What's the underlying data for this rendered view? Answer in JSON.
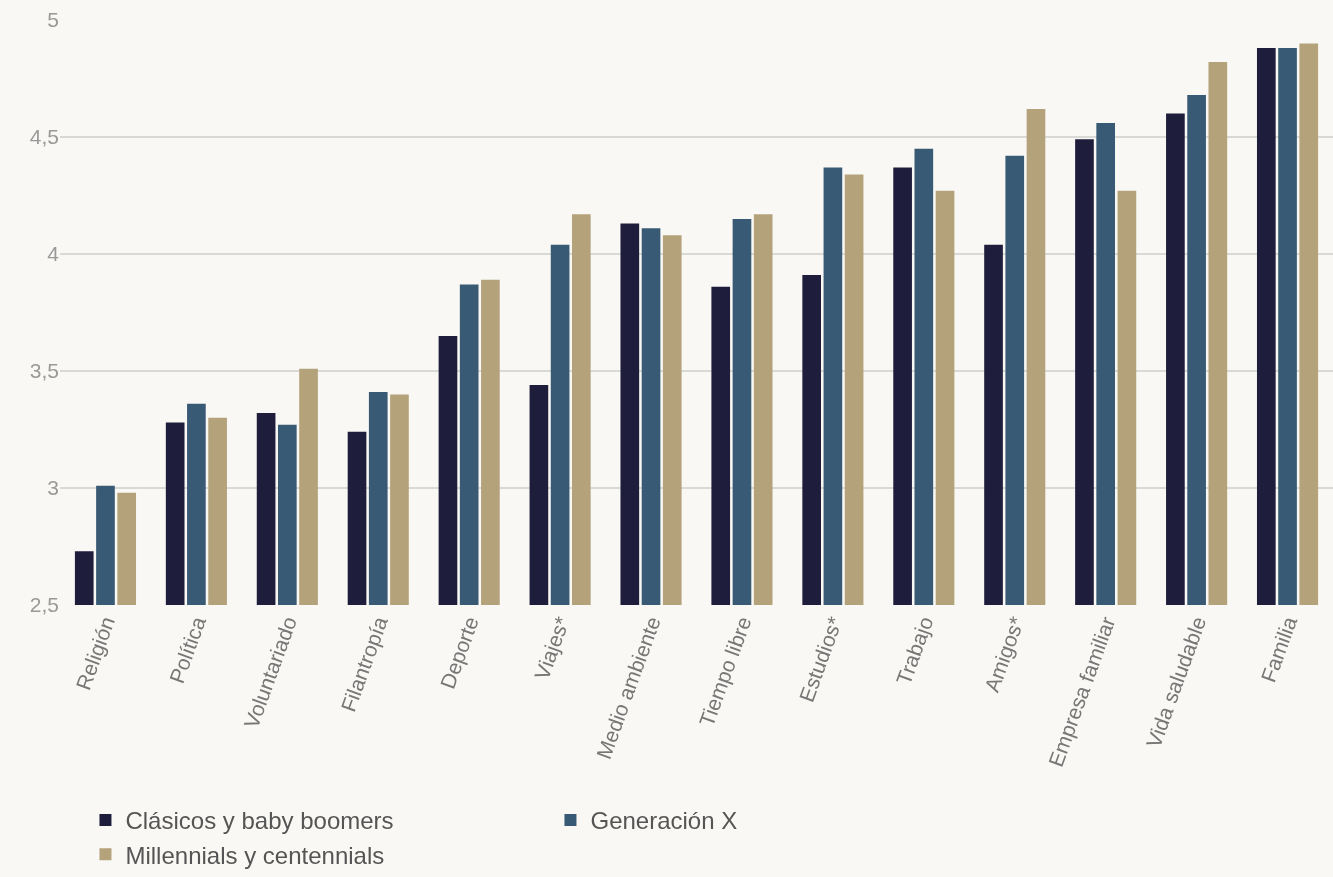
{
  "chart_data": {
    "type": "bar",
    "categories": [
      "Religión",
      "Política",
      "Voluntariado",
      "Filantropía",
      "Deporte",
      "Viajes*",
      "Medio ambiente",
      "Tiempo libre",
      "Estudios*",
      "Trabajo",
      "Amigos*",
      "Empresa familiar",
      "Vida saludable",
      "Familia"
    ],
    "series": [
      {
        "name": "Clásicos y baby boomers",
        "color": "#1e1d3b",
        "values": [
          2.73,
          3.28,
          3.32,
          3.24,
          3.65,
          3.44,
          4.13,
          3.86,
          3.91,
          4.37,
          4.04,
          4.49,
          4.6,
          4.88
        ]
      },
      {
        "name": "Generación X",
        "color": "#385a74",
        "values": [
          3.01,
          3.36,
          3.27,
          3.41,
          3.87,
          4.04,
          4.11,
          4.15,
          4.37,
          4.45,
          4.42,
          4.56,
          4.68,
          4.88
        ]
      },
      {
        "name": "Millennials y centennials",
        "color": "#b4a27b",
        "values": [
          2.98,
          3.3,
          3.51,
          3.4,
          3.89,
          4.17,
          4.08,
          4.17,
          4.34,
          4.27,
          4.62,
          4.27,
          4.82,
          4.9
        ]
      }
    ],
    "ylim": [
      2.5,
      5
    ],
    "yticks": [
      {
        "value": 2.5,
        "label": "2,5"
      },
      3,
      {
        "value": 3.5,
        "label": "3,5"
      },
      4,
      {
        "value": 4.5,
        "label": "4,5"
      },
      5
    ],
    "grid": "y",
    "legend": "bottom"
  }
}
